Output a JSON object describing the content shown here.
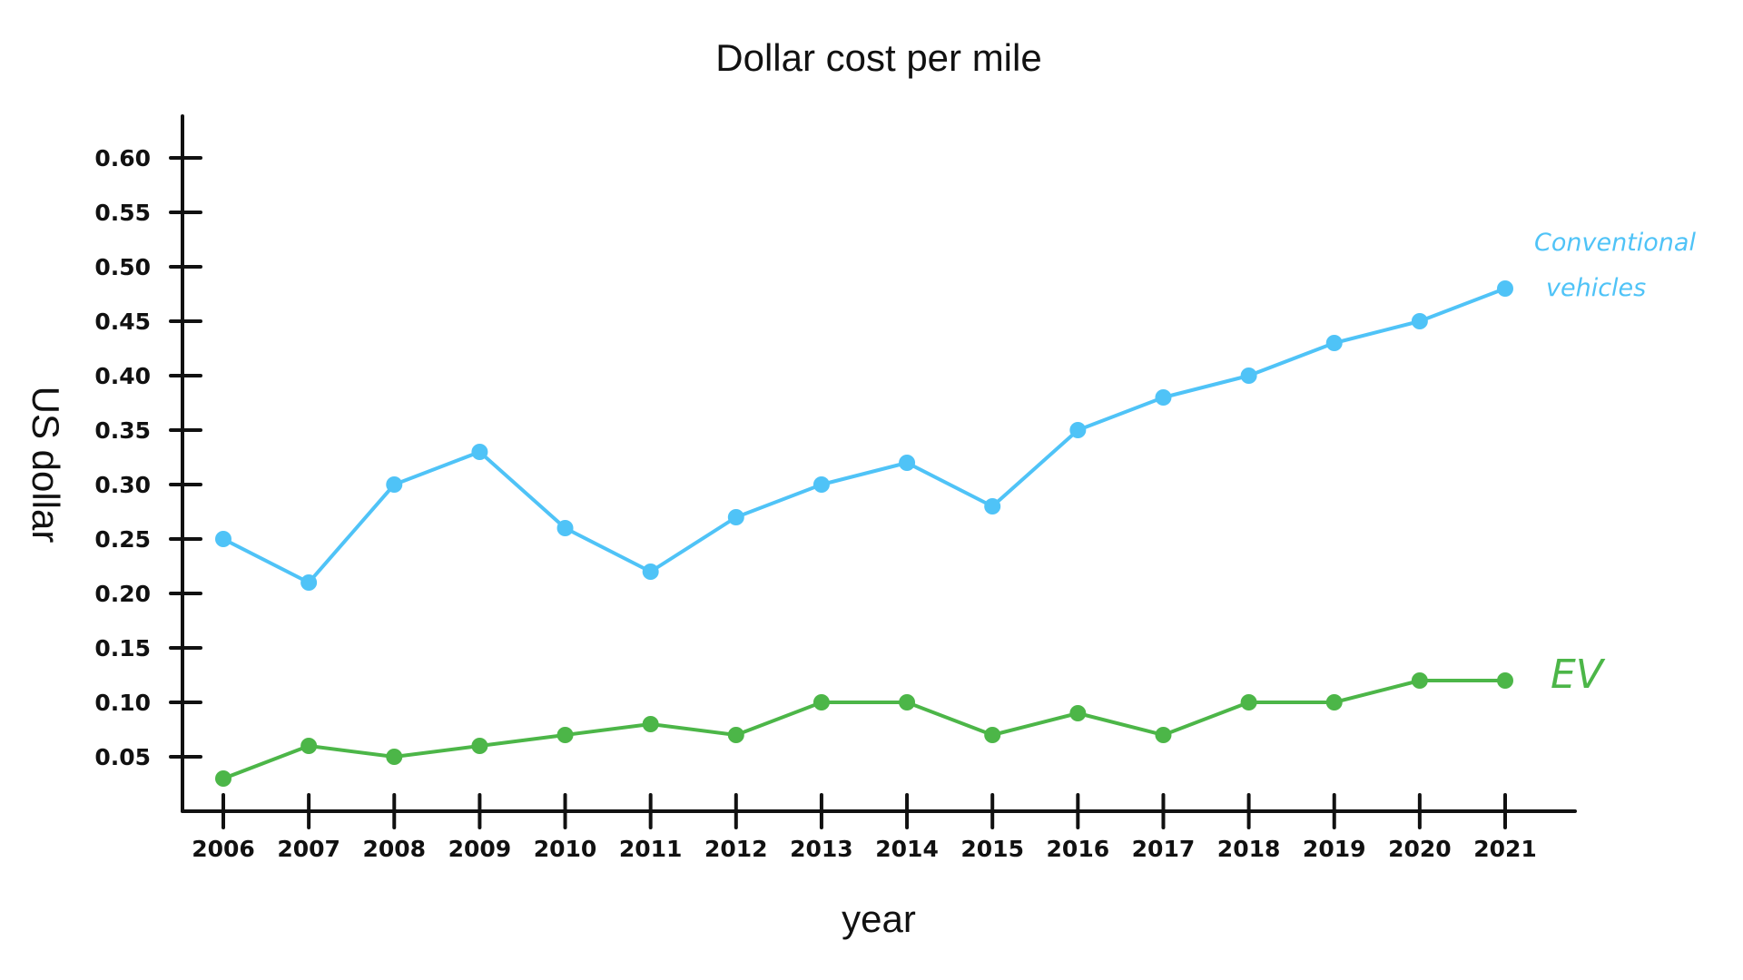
{
  "chart_data": {
    "type": "line",
    "title": "Dollar cost per mile",
    "xlabel": "year",
    "ylabel": "US dollar",
    "categories": [
      "2006",
      "2007",
      "2008",
      "2009",
      "2010",
      "2011",
      "2012",
      "2013",
      "2014",
      "2015",
      "2016",
      "2017",
      "2018",
      "2019",
      "2020",
      "2021"
    ],
    "y_ticks": [
      "0.05",
      "0.10",
      "0.15",
      "0.20",
      "0.25",
      "0.30",
      "0.35",
      "0.40",
      "0.45",
      "0.50",
      "0.55",
      "0.60"
    ],
    "ylim": [
      0,
      0.6
    ],
    "grid": false,
    "legend": "inline labels at line ends (right)",
    "series": [
      {
        "name": "Conventional vehicles",
        "label_lines": [
          "Conventional",
          "vehicles"
        ],
        "color": "#4fc3f7",
        "values": [
          0.25,
          0.21,
          0.3,
          0.33,
          0.26,
          0.22,
          0.27,
          0.3,
          0.32,
          0.28,
          0.35,
          0.38,
          0.4,
          0.43,
          0.45,
          0.48
        ]
      },
      {
        "name": "EV",
        "label_lines": [
          "EV"
        ],
        "color": "#4cb648",
        "values": [
          0.03,
          0.06,
          0.05,
          0.06,
          0.07,
          0.08,
          0.07,
          0.1,
          0.1,
          0.07,
          0.09,
          0.07,
          0.1,
          0.1,
          0.12,
          0.12
        ]
      }
    ]
  }
}
